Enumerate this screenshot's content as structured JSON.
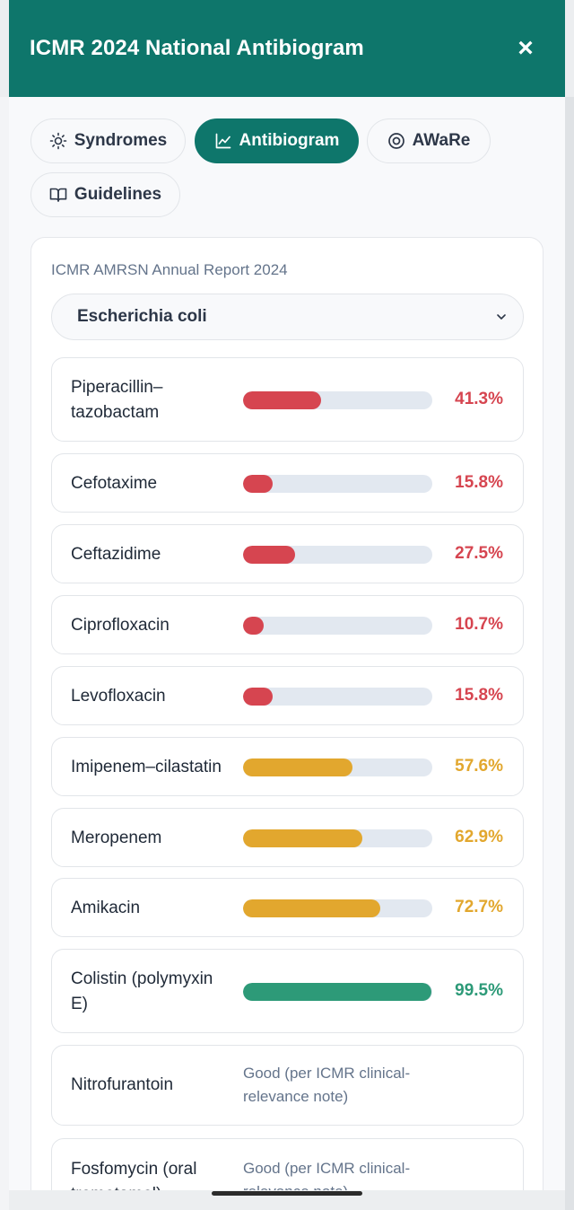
{
  "header": {
    "title": "ICMR 2024 National Antibiogram",
    "close_glyph": "×"
  },
  "tabs": [
    {
      "label": "Syndromes",
      "icon": "sun-icon",
      "active": false
    },
    {
      "label": "Antibiogram",
      "icon": "line-chart-icon",
      "active": true
    },
    {
      "label": "AWaRe",
      "icon": "target-icon",
      "active": false
    },
    {
      "label": "Guidelines",
      "icon": "book-icon",
      "active": false
    }
  ],
  "report": {
    "label": "ICMR AMRSN Annual Report 2024"
  },
  "organism": {
    "selected": "Escherichia coli"
  },
  "colors": {
    "resistant_red": "#d64550",
    "intermediate_amber": "#e2a72e",
    "susceptible_green": "#2d9a78",
    "brand_teal": "#0e766b"
  },
  "susceptibility": [
    {
      "drug": "Piperacillin–tazobactam",
      "value": 41.3,
      "label": "41.3%",
      "level": "red"
    },
    {
      "drug": "Cefotaxime",
      "value": 15.8,
      "label": "15.8%",
      "level": "red"
    },
    {
      "drug": "Ceftazidime",
      "value": 27.5,
      "label": "27.5%",
      "level": "red"
    },
    {
      "drug": "Ciprofloxacin",
      "value": 10.7,
      "label": "10.7%",
      "level": "red"
    },
    {
      "drug": "Levofloxacin",
      "value": 15.8,
      "label": "15.8%",
      "level": "red"
    },
    {
      "drug": "Imipenem–cilastatin",
      "value": 57.6,
      "label": "57.6%",
      "level": "amber"
    },
    {
      "drug": "Meropenem",
      "value": 62.9,
      "label": "62.9%",
      "level": "amber"
    },
    {
      "drug": "Amikacin",
      "value": 72.7,
      "label": "72.7%",
      "level": "amber"
    },
    {
      "drug": "Colistin (polymyxin E)",
      "value": 99.5,
      "label": "99.5%",
      "level": "green"
    }
  ],
  "notes": [
    {
      "drug": "Nitrofurantoin",
      "note": "Good (per ICMR clinical-relevance note)"
    },
    {
      "drug": "Fosfomycin (oral trometamol)",
      "note": "Good (per ICMR clinical-relevance note)"
    }
  ]
}
